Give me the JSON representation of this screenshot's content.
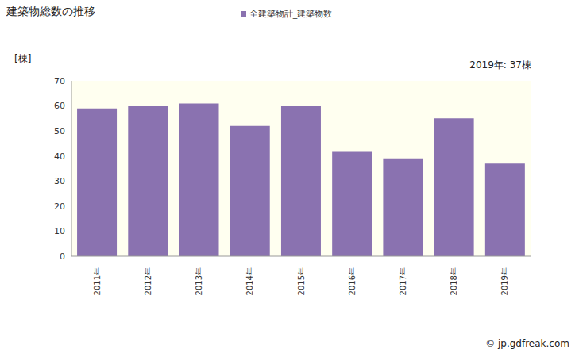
{
  "chart_data": {
    "type": "bar",
    "title": "建築物総数の推移",
    "ylabel": "[棟]",
    "annotation": "2019年: 37棟",
    "source": "© jp.gdfreak.com",
    "categories": [
      "2011年",
      "2012年",
      "2013年",
      "2014年",
      "2015年",
      "2016年",
      "2017年",
      "2018年",
      "2019年"
    ],
    "series": [
      {
        "name": "全建築物計_建築物数",
        "color": "#8a72b0",
        "values": [
          59,
          60,
          61,
          52,
          60,
          42,
          39,
          55,
          37
        ]
      }
    ],
    "ylim": [
      0,
      70
    ],
    "yticks": [
      0,
      10,
      20,
      30,
      40,
      50,
      60,
      70
    ],
    "grid": false,
    "legend": "top"
  }
}
